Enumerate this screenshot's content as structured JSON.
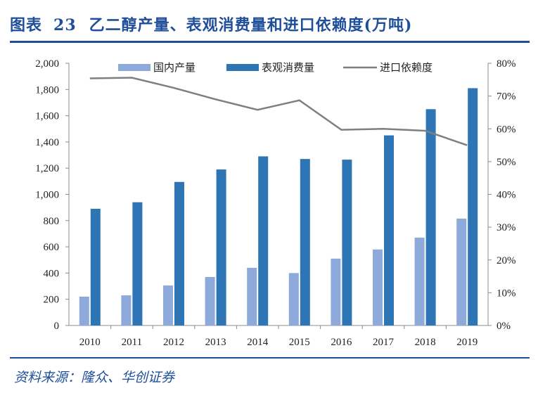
{
  "figure": {
    "label": "图表",
    "number": "23",
    "title": "乙二醇产量、表观消费量和进口依赖度(万吨)"
  },
  "source": "资料来源：隆众、华创证券",
  "colors": {
    "title": "#1f4e9a",
    "domestic": "#8eaadb",
    "consumption": "#2e75b6",
    "dependency": "#7f7f7f"
  },
  "chart_data": {
    "type": "bar",
    "categories": [
      "2010",
      "2011",
      "2012",
      "2013",
      "2014",
      "2015",
      "2016",
      "2017",
      "2018",
      "2019"
    ],
    "series": [
      {
        "name": "国内产量",
        "type": "bar",
        "axis": "left",
        "values": [
          220,
          230,
          305,
          370,
          440,
          400,
          510,
          580,
          670,
          815
        ]
      },
      {
        "name": "表观消费量",
        "type": "bar",
        "axis": "left",
        "values": [
          890,
          940,
          1095,
          1190,
          1290,
          1270,
          1265,
          1450,
          1650,
          1810
        ]
      },
      {
        "name": "进口依赖度",
        "type": "line",
        "axis": "right",
        "values": [
          75.4,
          75.6,
          72.5,
          69.0,
          65.8,
          68.7,
          59.7,
          60.0,
          59.4,
          55.0
        ]
      }
    ],
    "y_left": {
      "min": 0,
      "max": 2000,
      "ticks": [
        "0",
        "200",
        "400",
        "600",
        "800",
        "1,000",
        "1,200",
        "1,400",
        "1,600",
        "1,800",
        "2,000"
      ]
    },
    "y_right": {
      "min": 0,
      "max": 80,
      "ticks": [
        "0%",
        "10%",
        "20%",
        "30%",
        "40%",
        "50%",
        "60%",
        "70%",
        "80%"
      ]
    },
    "legend_position": "top",
    "grid": false
  }
}
